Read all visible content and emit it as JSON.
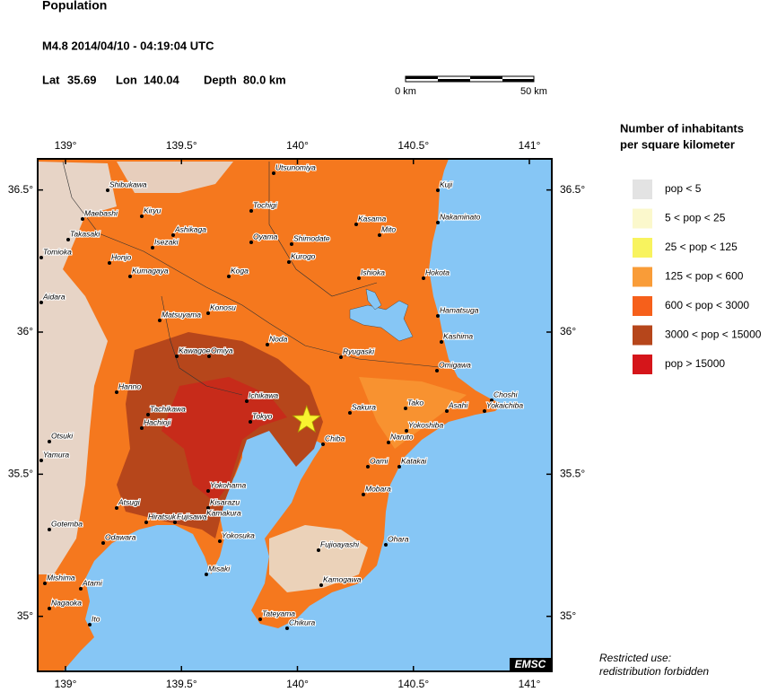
{
  "header": {
    "title": "Population",
    "event": "M4.8  2014/04/10 - 04:19:04 UTC",
    "lat_label": "Lat",
    "lat": 35.69,
    "lon_label": "Lon",
    "lon": 140.04,
    "depth_label": "Depth",
    "depth": "80.0 km"
  },
  "scale": {
    "left": "0 km",
    "right": "50 km"
  },
  "map": {
    "xticks": [
      {
        "value": 139,
        "label": "139°"
      },
      {
        "value": 139.5,
        "label": "139.5°"
      },
      {
        "value": 140,
        "label": "140°"
      },
      {
        "value": 140.5,
        "label": "140.5°"
      },
      {
        "value": 141,
        "label": "141°"
      }
    ],
    "yticks": [
      {
        "value": 36.5,
        "label": "36.5°"
      },
      {
        "value": 36,
        "label": "36°"
      },
      {
        "value": 35.5,
        "label": "35.5°"
      },
      {
        "value": 35,
        "label": "35°"
      }
    ],
    "cities": [
      "Utsunomiya",
      "Shibukawa",
      "Kuji",
      "Tochigi",
      "Kiryu",
      "Kasama",
      "Maebashi",
      "Ashikaga",
      "Mito",
      "Nakaminato",
      "Takasaki",
      "Isezaki",
      "Oyama",
      "Shimodate",
      "Tomioka",
      "Honjo",
      "Kurogo",
      "Hokota",
      "Ishioka",
      "Kumagaya",
      "Koga",
      "Aidara",
      "Konosu",
      "Hamatsuga",
      "Matsuyama",
      "Noda",
      "Kashima",
      "Kawagoe",
      "Omiya",
      "Ryugaski",
      "Omigawa",
      "Hanno",
      "Ichikawa",
      "Choshi",
      "Tako",
      "Tachikawa",
      "Tokyo",
      "Sakura",
      "Asahi",
      "Yokaichiba",
      "Hachioji",
      "Yokoshiba",
      "Otsuki",
      "Chiba",
      "Naruto",
      "Yamura",
      "Oami",
      "Katakai",
      "Yokohama",
      "Mobara",
      "Kisarazu",
      "Atsugi",
      "Kamakura",
      "Hiratsuka",
      "Fujisawa",
      "Gotemba",
      "Odawara",
      "Yokosuka",
      "Fujioayashi",
      "Ohara",
      "Misaki",
      "Mishima",
      "Atami",
      "Kamogawa",
      "Nagaoka",
      "Ito",
      "Tateyama",
      "Chikura"
    ],
    "badge": "EMSC"
  },
  "legend": {
    "title": [
      "Number of inhabitants",
      "per square kilometer"
    ],
    "items": [
      {
        "label": "pop < 5",
        "color": "#e3e3e3"
      },
      {
        "label": "5 < pop < 25",
        "color": "#fbf8cc"
      },
      {
        "label": "25 < pop < 125",
        "color": "#f8f35e"
      },
      {
        "label": "125 < pop < 600",
        "color": "#f99c38"
      },
      {
        "label": "600 < pop < 3000",
        "color": "#f6601b"
      },
      {
        "label": "3000 < pop < 15000",
        "color": "#b6461b"
      },
      {
        "label": "pop > 15000",
        "color": "#d5151a"
      }
    ]
  },
  "footer": [
    "Restricted use:",
    "redistribution forbidden"
  ]
}
